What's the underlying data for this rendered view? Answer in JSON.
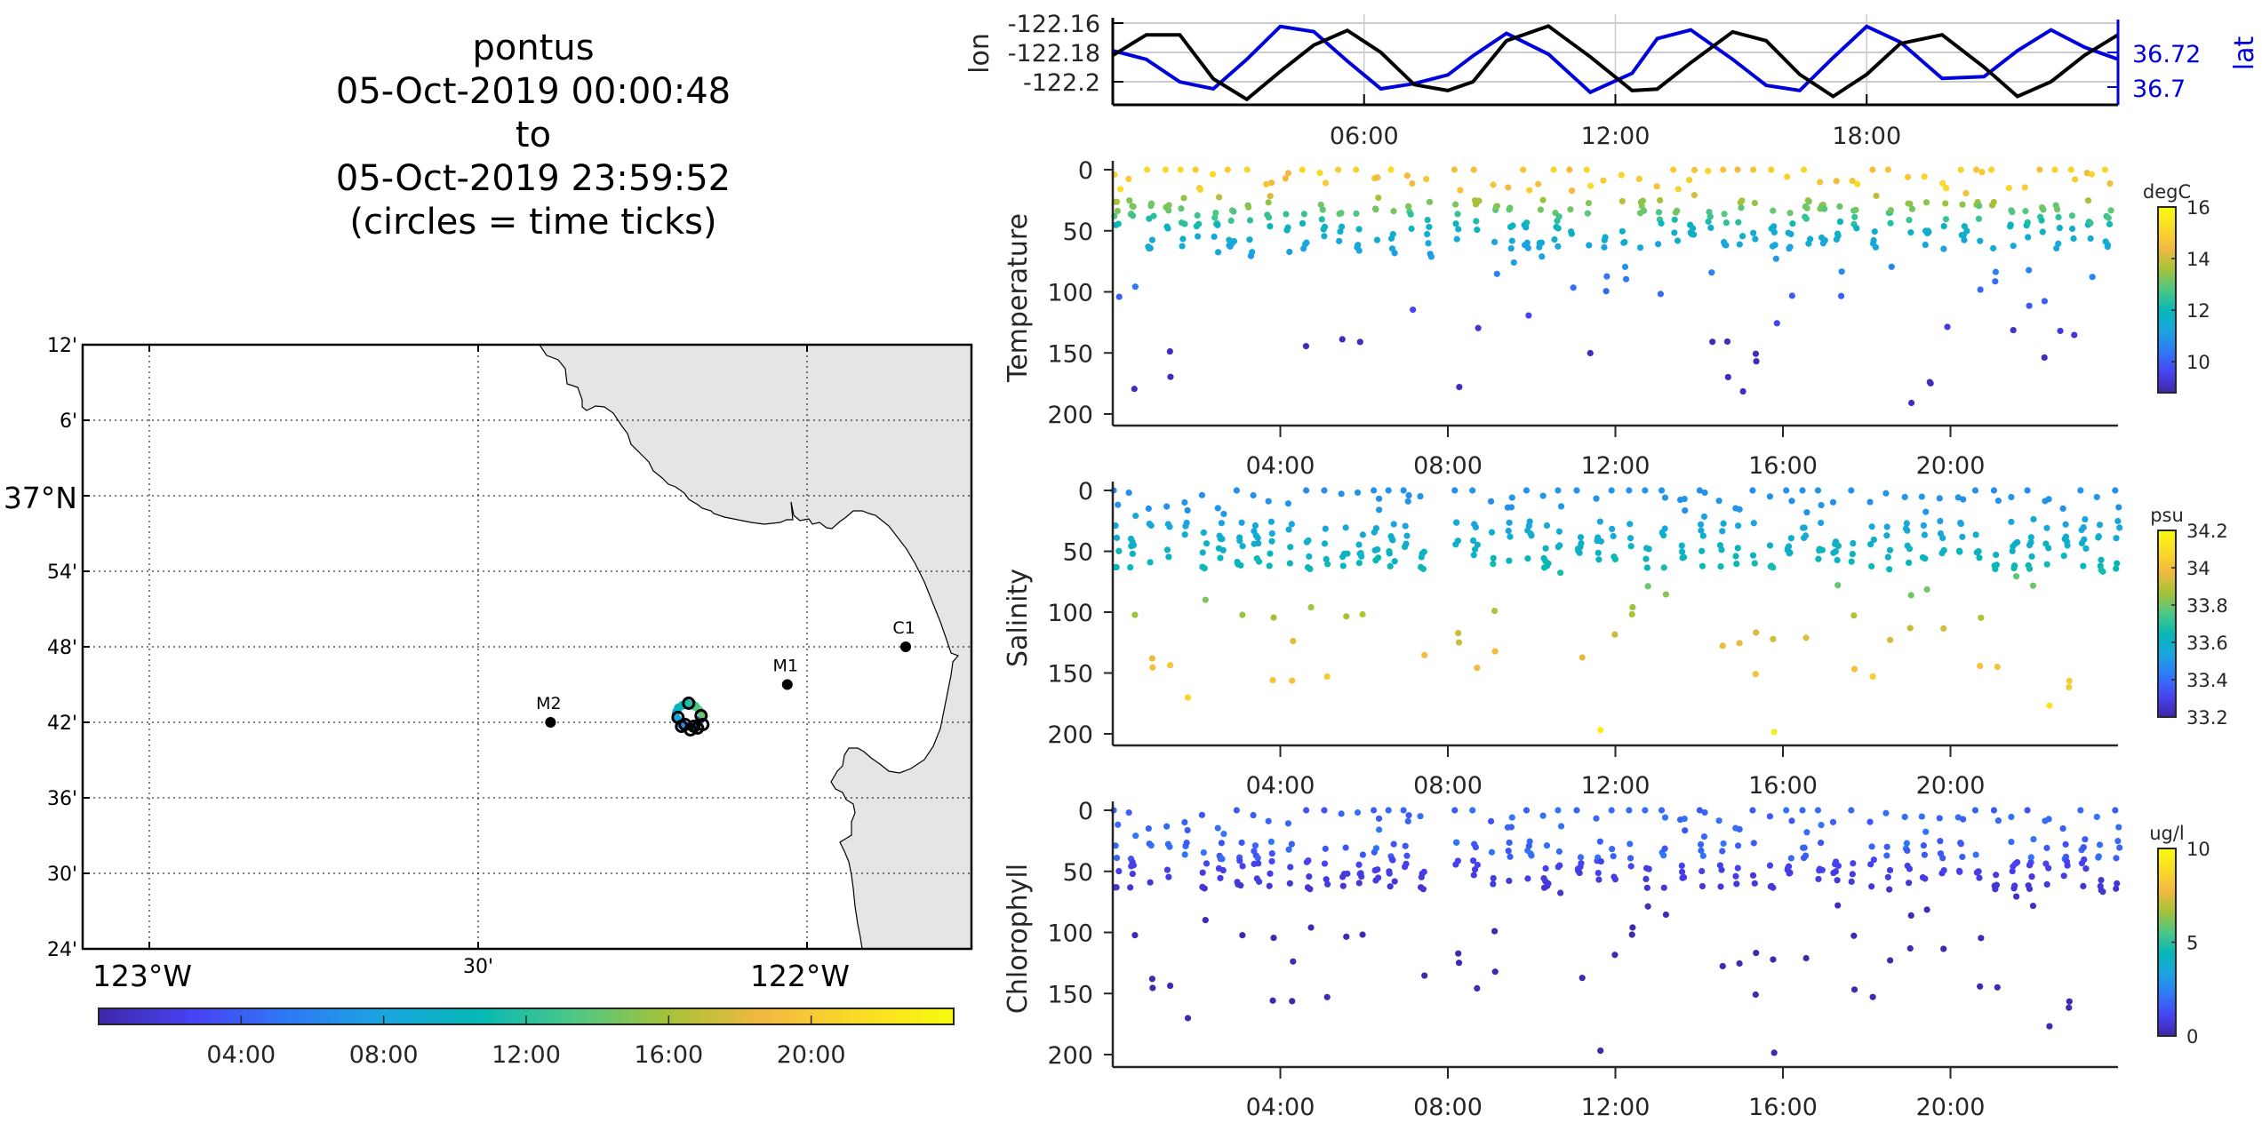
{
  "title": {
    "vehicle": "pontus",
    "start": "05-Oct-2019 00:00:48",
    "sep": "to",
    "end": "05-Oct-2019 23:59:52",
    "note": "(circles = time ticks)"
  },
  "colors": {
    "lon_line": "#000000",
    "lat_line": "#0000dd",
    "land": "#e5e5e5",
    "grid": "#cccccc",
    "colormap": [
      "#3e26a8",
      "#4743f4",
      "#2f79f6",
      "#1aa5e0",
      "#06b8b6",
      "#4dc784",
      "#a6c238",
      "#f3b940",
      "#fadb27",
      "#f9fb0e"
    ]
  },
  "chart_data": [
    {
      "name": "map",
      "type": "scatter",
      "title": "Track map",
      "xlabel": "",
      "ylabel": "",
      "xlim_deg": [
        -123.1,
        -121.76
      ],
      "ylim_deg": [
        36.4,
        37.2
      ],
      "lat_ticks": [
        "12'",
        "6'",
        "37°N",
        "54'",
        "48'",
        "42'",
        "36'",
        "30'",
        "24'"
      ],
      "lat_tick_values": [
        37.2,
        37.1,
        37.0,
        36.9,
        36.8,
        36.7,
        36.6,
        36.5,
        36.4
      ],
      "lon_ticks": [
        "123°W",
        "30'",
        "122°W"
      ],
      "lon_tick_values": [
        -123.0,
        -122.5,
        -122.0
      ],
      "grid": true,
      "stations": [
        {
          "name": "M2",
          "lon": -122.39,
          "lat": 36.7
        },
        {
          "name": "M1",
          "lon": -122.03,
          "lat": 36.75
        },
        {
          "name": "C1",
          "lon": -121.85,
          "lat": 36.8
        }
      ],
      "track_center": {
        "lon": -122.18,
        "lat": 36.71
      },
      "colorbar": {
        "orientation": "horizontal",
        "ticks": [
          "04:00",
          "08:00",
          "12:00",
          "16:00",
          "20:00"
        ],
        "range_hours": [
          0,
          24
        ]
      }
    },
    {
      "name": "lon_lat",
      "type": "line",
      "ylabel_left": "lon",
      "ylabel_right": "lat",
      "x_hours": [
        0,
        0.8,
        1.6,
        2.4,
        3.2,
        4.0,
        4.8,
        5.6,
        6.4,
        7.2,
        8.0,
        8.6,
        9.4,
        10.4,
        11.4,
        12.4,
        13.0,
        13.8,
        14.8,
        15.6,
        16.4,
        17.2,
        18.0,
        18.8,
        19.8,
        20.8,
        21.6,
        22.4,
        23.2,
        24.0
      ],
      "xticks": [
        "06:00",
        "12:00",
        "18:00"
      ],
      "xtick_values": [
        6,
        12,
        18
      ],
      "ylim_left": [
        -122.215,
        -122.155
      ],
      "yticks_left": [
        "-122.16",
        "-122.18",
        "-122.2"
      ],
      "ylim_right": [
        36.692,
        36.742
      ],
      "yticks_right": [
        "36.72",
        "36.7"
      ],
      "series": [
        {
          "name": "lon",
          "axis": "left",
          "values": [
            -122.182,
            -122.168,
            -122.168,
            -122.198,
            -122.212,
            -122.193,
            -122.175,
            -122.165,
            -122.18,
            -122.202,
            -122.206,
            -122.2,
            -122.172,
            -122.162,
            -122.183,
            -122.206,
            -122.205,
            -122.187,
            -122.166,
            -122.172,
            -122.195,
            -122.21,
            -122.195,
            -122.174,
            -122.168,
            -122.19,
            -122.21,
            -122.2,
            -122.182,
            -122.168
          ]
        },
        {
          "name": "lat",
          "axis": "right",
          "values": [
            36.721,
            36.716,
            36.703,
            36.699,
            36.716,
            36.735,
            36.732,
            36.715,
            36.699,
            36.702,
            36.707,
            36.718,
            36.731,
            36.719,
            36.697,
            36.708,
            36.728,
            36.733,
            36.716,
            36.701,
            36.698,
            36.717,
            36.735,
            36.726,
            36.705,
            36.706,
            36.721,
            36.733,
            36.723,
            36.716
          ]
        }
      ]
    },
    {
      "name": "temperature",
      "type": "scatter",
      "ylabel": "Temperature",
      "xlim_hours": [
        0,
        24
      ],
      "ylim": [
        210,
        0
      ],
      "yticks": [
        0,
        50,
        100,
        150,
        200
      ],
      "xticks": [
        "04:00",
        "08:00",
        "12:00",
        "16:00",
        "20:00"
      ],
      "xtick_values": [
        4,
        8,
        12,
        16,
        20
      ],
      "colorbar": {
        "units": "degC",
        "range": [
          8.8,
          16
        ],
        "ticks": [
          "16",
          "14",
          "12",
          "10"
        ],
        "tick_values": [
          16,
          14,
          12,
          10
        ]
      },
      "gap_hours": [
        7.7,
        8.1
      ],
      "profile_depth_range": [
        0,
        200
      ],
      "surface_value": 15.2,
      "mld": 40,
      "deep_value": 9.0
    },
    {
      "name": "salinity",
      "type": "scatter",
      "ylabel": "Salinity",
      "xlim_hours": [
        0,
        24
      ],
      "ylim": [
        210,
        0
      ],
      "yticks": [
        0,
        50,
        100,
        150,
        200
      ],
      "xticks": [
        "04:00",
        "08:00",
        "12:00",
        "16:00",
        "20:00"
      ],
      "xtick_values": [
        4,
        8,
        12,
        16,
        20
      ],
      "colorbar": {
        "units": "psu",
        "range": [
          33.2,
          34.2
        ],
        "ticks": [
          "34.2",
          "34",
          "33.8",
          "33.6",
          "33.4",
          "33.2"
        ],
        "tick_values": [
          34.2,
          34.0,
          33.8,
          33.6,
          33.4,
          33.2
        ]
      },
      "gap_hours": [
        7.7,
        8.1
      ],
      "surface_value": 33.45,
      "deep_value": 34.1
    },
    {
      "name": "chlorophyll",
      "type": "scatter",
      "ylabel": "Chlorophyll",
      "xlim_hours": [
        0,
        24
      ],
      "ylim": [
        210,
        0
      ],
      "yticks": [
        0,
        50,
        100,
        150,
        200
      ],
      "xticks": [
        "04:00",
        "08:00",
        "12:00",
        "16:00",
        "20:00"
      ],
      "xtick_values": [
        4,
        8,
        12,
        16,
        20
      ],
      "colorbar": {
        "units": "ug/l",
        "range": [
          0,
          10
        ],
        "ticks": [
          "10",
          "5",
          "0"
        ],
        "tick_values": [
          10,
          5,
          0
        ]
      },
      "gap_hours": [
        7.7,
        8.1
      ],
      "surface_value": 1.6,
      "deep_value": 0.2
    }
  ]
}
